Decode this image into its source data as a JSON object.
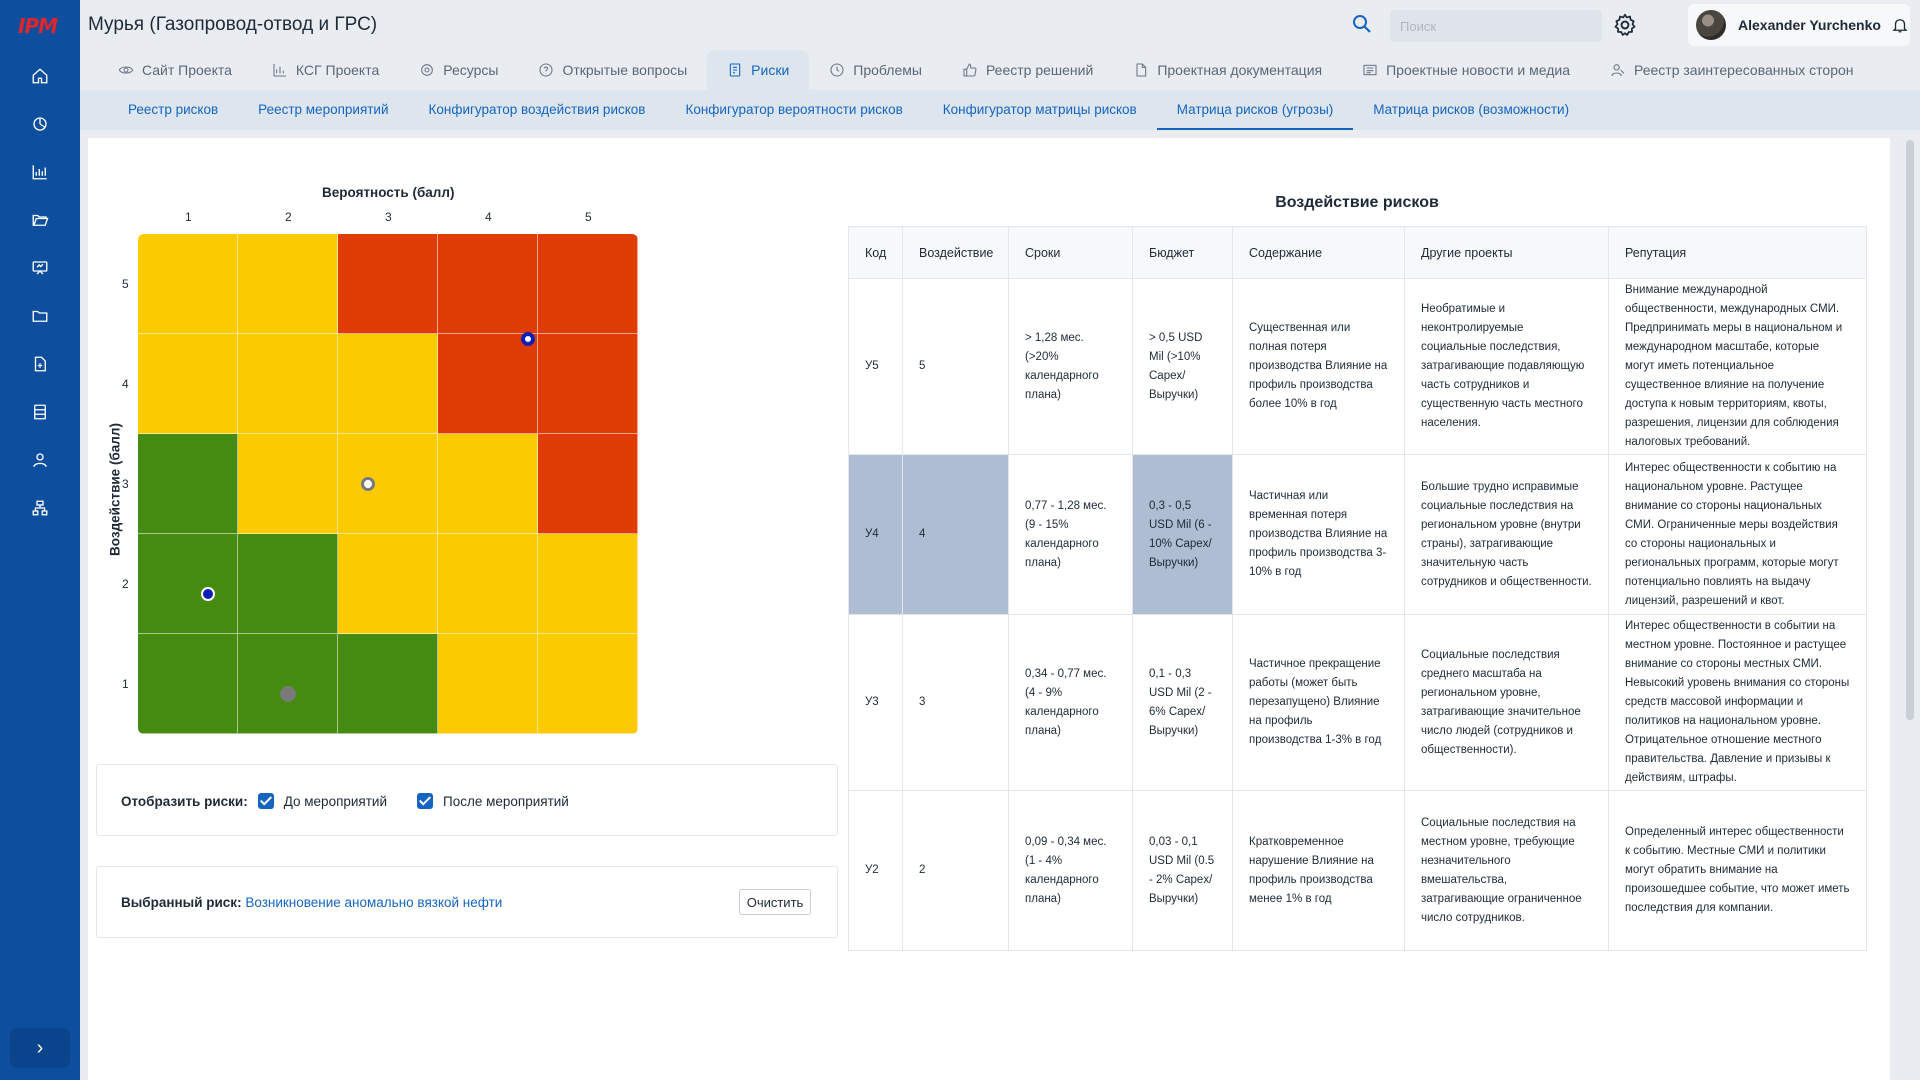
{
  "app": {
    "logo_text": "IPM"
  },
  "header": {
    "title": "Мурья (Газопровод-отвод и ГРС)",
    "search_placeholder": "Поиск",
    "user_name": "Alexander Yurchenko"
  },
  "main_tabs": [
    {
      "label": "Сайт Проекта",
      "icon": "eye-icon"
    },
    {
      "label": "КСГ Проекта",
      "icon": "chart-icon"
    },
    {
      "label": "Ресурсы",
      "icon": "gear-icon"
    },
    {
      "label": "Открытые вопросы",
      "icon": "question-icon"
    },
    {
      "label": "Риски",
      "icon": "risk-document-icon",
      "active": true
    },
    {
      "label": "Проблемы",
      "icon": "clock-icon"
    },
    {
      "label": "Реестр решений",
      "icon": "thumbs-up-icon"
    },
    {
      "label": "Проектная документация",
      "icon": "pdf-document-icon"
    },
    {
      "label": "Проектные новости и медиа",
      "icon": "news-icon"
    },
    {
      "label": "Реестр заинтересованных сторон",
      "icon": "stakeholders-icon"
    }
  ],
  "sub_tabs": [
    {
      "label": "Реестр рисков"
    },
    {
      "label": "Реестр мероприятий"
    },
    {
      "label": "Конфигуратор воздействия рисков"
    },
    {
      "label": "Конфигуратор вероятности рисков"
    },
    {
      "label": "Конфигуратор матрицы рисков"
    },
    {
      "label": "Матрица рисков (угрозы)",
      "active": true
    },
    {
      "label": "Матрица рисков (возможности)"
    }
  ],
  "matrix": {
    "x_title": "Вероятность (балл)",
    "y_title": "Воздействие (балл)",
    "x_ticks": [
      "1",
      "2",
      "3",
      "4",
      "5"
    ],
    "y_ticks": [
      "5",
      "4",
      "3",
      "2",
      "1"
    ],
    "colors": {
      "green": "#458b0f",
      "yellow": "#fcca00",
      "red": "#de3c03"
    },
    "cells": [
      [
        "yellow",
        "yellow",
        "red",
        "red",
        "red"
      ],
      [
        "yellow",
        "yellow",
        "yellow",
        "red",
        "red"
      ],
      [
        "green",
        "yellow",
        "yellow",
        "yellow",
        "red"
      ],
      [
        "green",
        "green",
        "yellow",
        "yellow",
        "yellow"
      ],
      [
        "green",
        "green",
        "green",
        "yellow",
        "yellow"
      ]
    ],
    "risks": [
      {
        "probability": 4.4,
        "impact": 4.45,
        "style": "blue-ring-white"
      },
      {
        "probability": 2.8,
        "impact": 3.0,
        "style": "grey-ring-white"
      },
      {
        "probability": 1.2,
        "impact": 1.9,
        "style": "blue-ring-navy"
      },
      {
        "probability": 2.0,
        "impact": 0.9,
        "style": "grey-solid"
      }
    ]
  },
  "display_options": {
    "label": "Отобразить риски:",
    "before": {
      "label": "До мероприятий",
      "checked": true
    },
    "after": {
      "label": "После мероприятий",
      "checked": true
    }
  },
  "selected_risk": {
    "label": "Выбранный риск:",
    "value": "Возникновение аномально вязкой нефти",
    "clear_label": "Очистить"
  },
  "impact_table": {
    "title": "Воздействие рисков",
    "columns": [
      "Код",
      "Воздействие",
      "Сроки",
      "Бюджет",
      "Содержание",
      "Другие проекты",
      "Репутация"
    ],
    "rows": [
      {
        "code": "У5",
        "impact": "5",
        "schedule": "> 1,28  мес. (>20% календарного плана)",
        "budget": "> 0,5 USD Mil (>10% Capex/ Выручки)",
        "scope": "Существенная или полная потеря производства Влияние на профиль производства более 10% в год",
        "other_projects": "Необратимые и неконтролируемые социальные последствия, затрагивающие подавляющую часть сотрудников и существенную часть местного населения.",
        "reputation": "Внимание международной общественности, международных СМИ. Предпринимать меры в национальном и международном масштабе, которые могут иметь потенциальное существенное влияние на получение доступа к новым территориям, квоты, разрешения, лицензии для соблюдения налоговых требований.",
        "highlight": [],
        "height": 176
      },
      {
        "code": "У4",
        "impact": "4",
        "schedule": "0,77 - 1,28  мес. (9 - 15% календарного плана)",
        "budget": "0,3 - 0,5 USD Mil (6 - 10% Capex/ Выручки)",
        "scope": "Частичная или временная потеря производства Влияние на профиль производства 3-10% в год",
        "other_projects": "Большие трудно исправимые социальные последствия на региональном уровне (внутри страны), затрагивающие значительную часть сотрудников и общественности.",
        "reputation": "Интерес общественности к событию на национальном уровне. Растущее внимание со стороны национальных СМИ. Ограниченные меры воздействия со стороны национальных и региональных программ, которые могут потенциально повлиять на выдачу лицензий, разрешений и квот.",
        "highlight": [
          "code",
          "impact",
          "budget"
        ],
        "height": 160
      },
      {
        "code": "У3",
        "impact": "3",
        "schedule": "0,34 - 0,77  мес. (4 - 9% календарного плана)",
        "budget": "0,1 - 0,3 USD Mil (2 - 6% Capex/ Выручки)",
        "scope": "Частичное прекращение работы (может быть перезапущено) Влияние на профиль производства 1-3% в год",
        "other_projects": "Социальные последствия среднего масштаба на региональном уровне, затрагивающие значительное число людей (сотрудников и общественности).",
        "reputation": "Интерес общественности в событии на местном уровне. Постоянное и растущее внимание со стороны местных СМИ. Невысокий уровень внимания со стороны средств массовой информации и политиков на национальном уровне. Отрицательное отношение местного правительства. Давление и призывы к действиям, штрафы.",
        "highlight": [],
        "height": 176
      },
      {
        "code": "У2",
        "impact": "2",
        "schedule": "0,09 - 0,34  мес. (1 - 4% календарного плана)",
        "budget": "0,03 - 0,1 USD Mil (0.5 - 2% Capex/ Выручки)",
        "scope": "Кратковременное нарушение Влияние на профиль производства менее 1% в год",
        "other_projects": "Социальные последствия на местном уровне, требующие незначительного вмешательства, затрагивающие ограниченное число сотрудников.",
        "reputation": "Определенный интерес общественности к событию. Местные СМИ и политики могут обратить внимание на произошедшее событие, что может иметь последствия для компании.",
        "highlight": [],
        "height": 160
      }
    ]
  }
}
